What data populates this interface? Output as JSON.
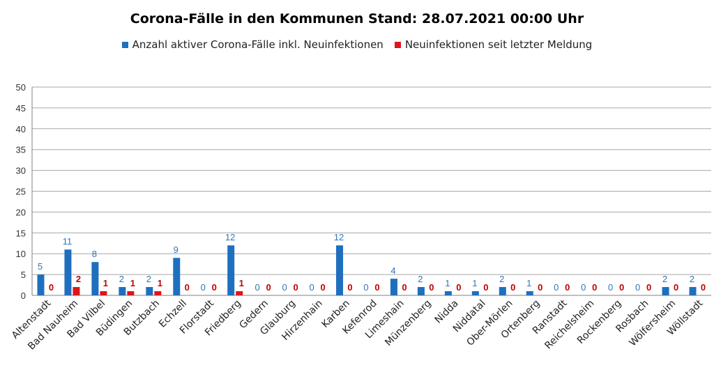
{
  "chart_data": {
    "type": "bar",
    "title": "Corona-Fälle in den Kommunen Stand: 28.07.2021 00:00 Uhr",
    "xlabel": "",
    "ylabel": "",
    "ylim": [
      0,
      50
    ],
    "yticks": [
      "0",
      "5",
      "10",
      "15",
      "20",
      "25",
      "30",
      "35",
      "40",
      "45",
      "50"
    ],
    "grid": true,
    "legend_position": "top",
    "categories": [
      "Altenstadt",
      "Bad Nauheim",
      "Bad Vilbel",
      "Büdingen",
      "Butzbach",
      "Echzell",
      "Florstadt",
      "Friedberg",
      "Gedern",
      "Glauburg",
      "Hirzenhain",
      "Karben",
      "Kefenrod",
      "Limeshain",
      "Münzenberg",
      "Nidda",
      "Niddatal",
      "Ober-Mörlen",
      "Ortenberg",
      "Ranstadt",
      "Reichelsheim",
      "Rockenberg",
      "Rosbach",
      "Wölfersheim",
      "Wöllstadt"
    ],
    "series": [
      {
        "name": "Anzahl aktiver Corona-Fälle inkl. Neuinfektionen",
        "color": "#1f6fbf",
        "values": [
          5,
          11,
          8,
          2,
          2,
          9,
          0,
          12,
          0,
          0,
          0,
          12,
          0,
          4,
          2,
          1,
          1,
          2,
          1,
          0,
          0,
          0,
          0,
          2,
          2
        ]
      },
      {
        "name": "Neuinfektionen seit letzter Meldung",
        "color": "#e0141c",
        "values": [
          0,
          2,
          1,
          1,
          1,
          0,
          0,
          1,
          0,
          0,
          0,
          0,
          0,
          0,
          0,
          0,
          0,
          0,
          0,
          0,
          0,
          0,
          0,
          0,
          0
        ]
      }
    ]
  }
}
